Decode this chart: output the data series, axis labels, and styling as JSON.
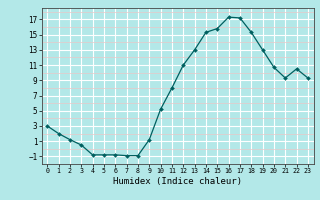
{
  "x": [
    0,
    1,
    2,
    3,
    4,
    5,
    6,
    7,
    8,
    9,
    10,
    11,
    12,
    13,
    14,
    15,
    16,
    17,
    18,
    19,
    20,
    21,
    22,
    23
  ],
  "y": [
    3.0,
    2.0,
    1.2,
    0.5,
    -0.8,
    -0.8,
    -0.8,
    -0.9,
    -0.9,
    1.2,
    5.2,
    8.0,
    11.0,
    13.0,
    15.3,
    15.8,
    17.3,
    17.2,
    15.3,
    13.0,
    10.7,
    9.3,
    10.5,
    9.3
  ],
  "xlim": [
    -0.5,
    23.5
  ],
  "ylim": [
    -2,
    18.5
  ],
  "yticks": [
    -1,
    1,
    3,
    5,
    7,
    9,
    11,
    13,
    15,
    17
  ],
  "xticks": [
    0,
    1,
    2,
    3,
    4,
    5,
    6,
    7,
    8,
    9,
    10,
    11,
    12,
    13,
    14,
    15,
    16,
    17,
    18,
    19,
    20,
    21,
    22,
    23
  ],
  "xlabel": "Humidex (Indice chaleur)",
  "line_color": "#006060",
  "marker": "D",
  "marker_size": 2.0,
  "bg_color": "#b3e8e8",
  "grid_major_color": "#ffffff",
  "grid_minor_color": "#e8c8c8",
  "title": ""
}
